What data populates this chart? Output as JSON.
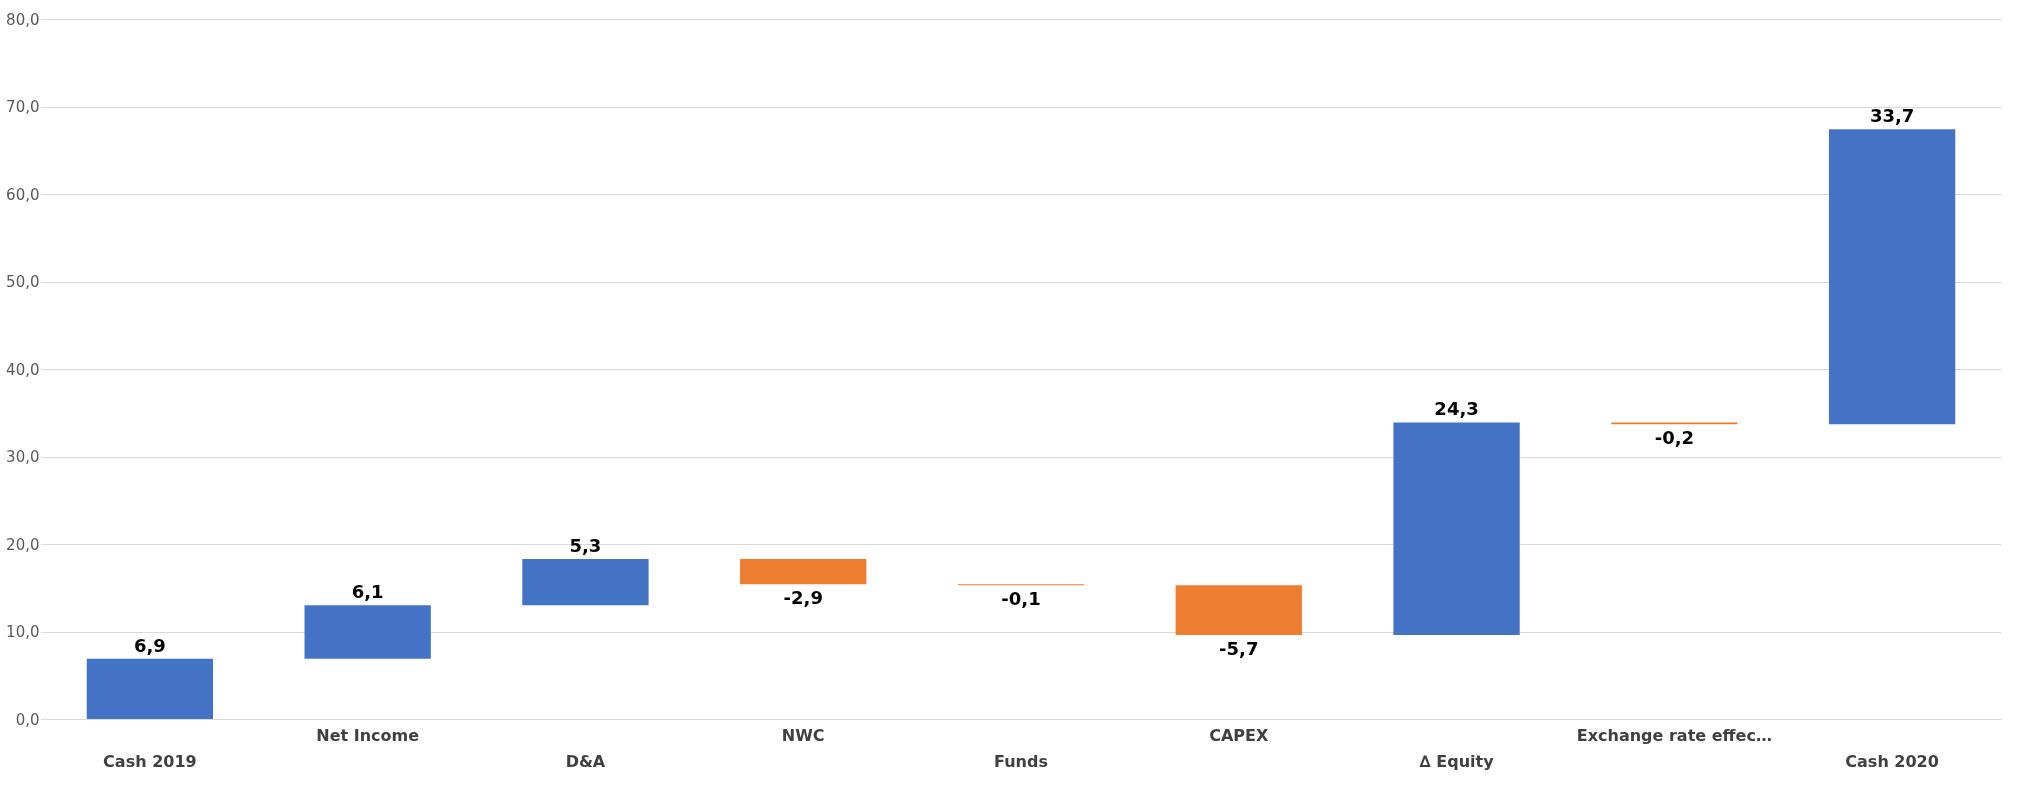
{
  "chart_data": {
    "type": "bar",
    "categories": [
      "Cash 2019",
      "Net Income",
      "D&A",
      "NWC",
      "Funds",
      "CAPEX",
      "∆ Equity",
      "Exchange rate effec…",
      "Cash 2020"
    ],
    "values": [
      6.9,
      6.1,
      5.3,
      -2.9,
      -0.1,
      -5.7,
      24.3,
      -0.2,
      33.7
    ],
    "base": [
      0,
      6.9,
      13.0,
      18.3,
      15.4,
      15.3,
      9.6,
      33.9,
      33.7
    ],
    "colors": [
      "#4472c4",
      "#4472c4",
      "#4472c4",
      "#ed7d31",
      "#ed7d31",
      "#ed7d31",
      "#4472c4",
      "#ed7d31",
      "#4472c4"
    ],
    "value_labels": [
      "6,9",
      "6,1",
      "5,3",
      "-2,9",
      "-0,1",
      "-5,7",
      "24,3",
      "-0,2",
      "33,7"
    ],
    "ylim": [
      0,
      80
    ],
    "yticks": [
      {
        "value": 0,
        "label": "0,0"
      },
      {
        "value": 10,
        "label": "10,0"
      },
      {
        "value": 20,
        "label": "20,0"
      },
      {
        "value": 30,
        "label": "30,0"
      },
      {
        "value": 40,
        "label": "40,0"
      },
      {
        "value": 50,
        "label": "50,0"
      },
      {
        "value": 60,
        "label": "60,0"
      },
      {
        "value": 70,
        "label": "70,0"
      },
      {
        "value": 80,
        "label": "80,0"
      }
    ],
    "grid": "y"
  }
}
